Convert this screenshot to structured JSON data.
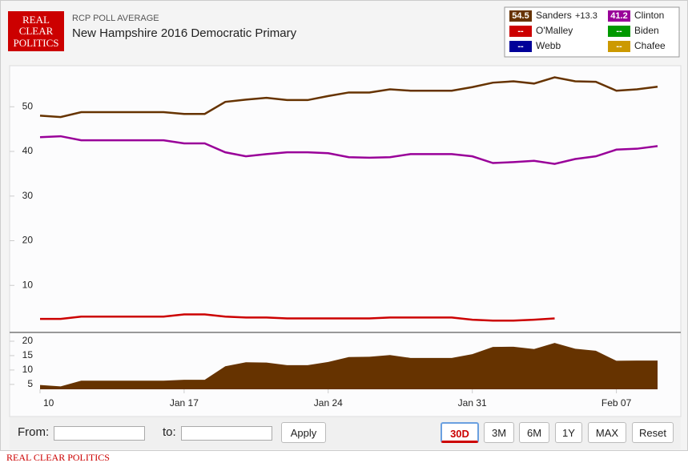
{
  "header": {
    "logo": [
      "REAL",
      "CLEAR",
      "POLITICS"
    ],
    "kicker": "RCP POLL AVERAGE",
    "title": "New Hampshire 2016 Democratic Primary"
  },
  "legend": [
    {
      "name": "Sanders",
      "color": "#663300",
      "series": 0
    },
    {
      "name": "Clinton",
      "color": "#990099",
      "series": 1
    },
    {
      "name": "O'Malley",
      "color": "#cc0000",
      "current": "--"
    },
    {
      "name": "Biden",
      "color": "#009900",
      "current": "--"
    },
    {
      "name": "Webb",
      "color": "#000099",
      "current": "--"
    },
    {
      "name": "Chafee",
      "color": "#cc9900",
      "current": "--"
    }
  ],
  "chart_data": {
    "type": "line",
    "categories": [
      "Jan 10",
      "Jan 11",
      "Jan 12",
      "Jan 13",
      "Jan 14",
      "Jan 15",
      "Jan 16",
      "Jan 17",
      "Jan 18",
      "Jan 19",
      "Jan 20",
      "Jan 21",
      "Jan 22",
      "Jan 23",
      "Jan 24",
      "Jan 25",
      "Jan 26",
      "Jan 27",
      "Jan 28",
      "Jan 29",
      "Jan 30",
      "Jan 31",
      "Feb 01",
      "Feb 02",
      "Feb 03",
      "Feb 04",
      "Feb 05",
      "Feb 06",
      "Feb 07",
      "Feb 08",
      "Feb 09"
    ],
    "xticks": [
      {
        "value": "Jan 10",
        "label": "10"
      },
      "Jan 17",
      "Jan 24",
      "Jan 31",
      "Feb 07"
    ],
    "ylim": [
      0,
      59.2
    ],
    "yticks": [
      10,
      20,
      30,
      40,
      50
    ],
    "series": [
      {
        "name": "Sanders",
        "color": "#663300",
        "values": [
          48.0,
          47.7,
          48.8,
          48.8,
          48.8,
          48.8,
          48.8,
          48.4,
          48.4,
          51.1,
          51.6,
          52.0,
          51.5,
          51.5,
          52.4,
          53.2,
          53.2,
          53.9,
          53.6,
          53.6,
          53.6,
          54.4,
          55.4,
          55.7,
          55.2,
          56.6,
          55.7,
          55.6,
          53.6,
          53.9,
          54.5
        ]
      },
      {
        "name": "Clinton",
        "color": "#990099",
        "values": [
          43.2,
          43.4,
          42.5,
          42.5,
          42.5,
          42.5,
          42.5,
          41.8,
          41.8,
          39.8,
          38.9,
          39.4,
          39.8,
          39.8,
          39.6,
          38.7,
          38.6,
          38.7,
          39.4,
          39.4,
          39.4,
          38.9,
          37.4,
          37.6,
          37.9,
          37.2,
          38.3,
          38.9,
          40.4,
          40.6,
          41.2
        ]
      },
      {
        "name": "O'Malley",
        "color": "#cc0000",
        "values": [
          2.5,
          2.5,
          3.0,
          3.0,
          3.0,
          3.0,
          3.0,
          3.5,
          3.5,
          3.0,
          2.8,
          2.8,
          2.6,
          2.6,
          2.6,
          2.6,
          2.6,
          2.8,
          2.8,
          2.8,
          2.8,
          2.3,
          2.1,
          2.1,
          2.3,
          2.6,
          null,
          null,
          null,
          null,
          null
        ]
      }
    ],
    "spread": {
      "type": "area",
      "color": "#663300",
      "ylim": [
        3.3,
        22.5
      ],
      "yticks": [
        5,
        10,
        15,
        20
      ],
      "values": [
        4.8,
        4.3,
        6.3,
        6.3,
        6.3,
        6.3,
        6.3,
        6.6,
        6.6,
        11.3,
        12.7,
        12.6,
        11.7,
        11.7,
        12.8,
        14.5,
        14.6,
        15.2,
        14.2,
        14.2,
        14.2,
        15.5,
        18.0,
        18.1,
        17.3,
        19.4,
        17.4,
        16.7,
        13.2,
        13.3,
        13.3
      ],
      "last_label": "+13.3"
    }
  },
  "controls": {
    "from": "From:",
    "to": "to:",
    "apply": "Apply",
    "ranges": [
      "30D",
      "3M",
      "6M",
      "1Y",
      "MAX",
      "Reset"
    ],
    "active": "30D"
  },
  "footer": "REAL CLEAR POLITICS"
}
